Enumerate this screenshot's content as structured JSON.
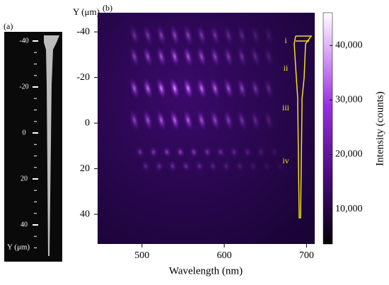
{
  "chart_data": [
    {
      "type": "image",
      "panel_label": "(a)",
      "ylabel": "Y (μm)",
      "ylim": [
        -44,
        56
      ],
      "yticks": [
        -40,
        -20,
        0,
        20,
        40
      ]
    },
    {
      "type": "heatmap",
      "panel_label": "(b)",
      "xlabel": "Wavelength (nm)",
      "ylabel": "Y (μm)",
      "xlim": [
        446,
        710
      ],
      "xticks": [
        500,
        600,
        700
      ],
      "ylim": [
        -48.4,
        53
      ],
      "yticks": [
        -40,
        -20,
        0,
        20,
        40
      ],
      "colorbar_label": "Intensity (counts)",
      "clim": [
        3600,
        46000
      ],
      "colorbar_ticks": [
        {
          "value": 10000,
          "label": "10,000"
        },
        {
          "value": 20000,
          "label": "20,000"
        },
        {
          "value": 30000,
          "label": "30,000"
        },
        {
          "value": 40000,
          "label": "40,000"
        }
      ],
      "annotations": [
        "i",
        "ii",
        "iii",
        "iv"
      ]
    }
  ]
}
